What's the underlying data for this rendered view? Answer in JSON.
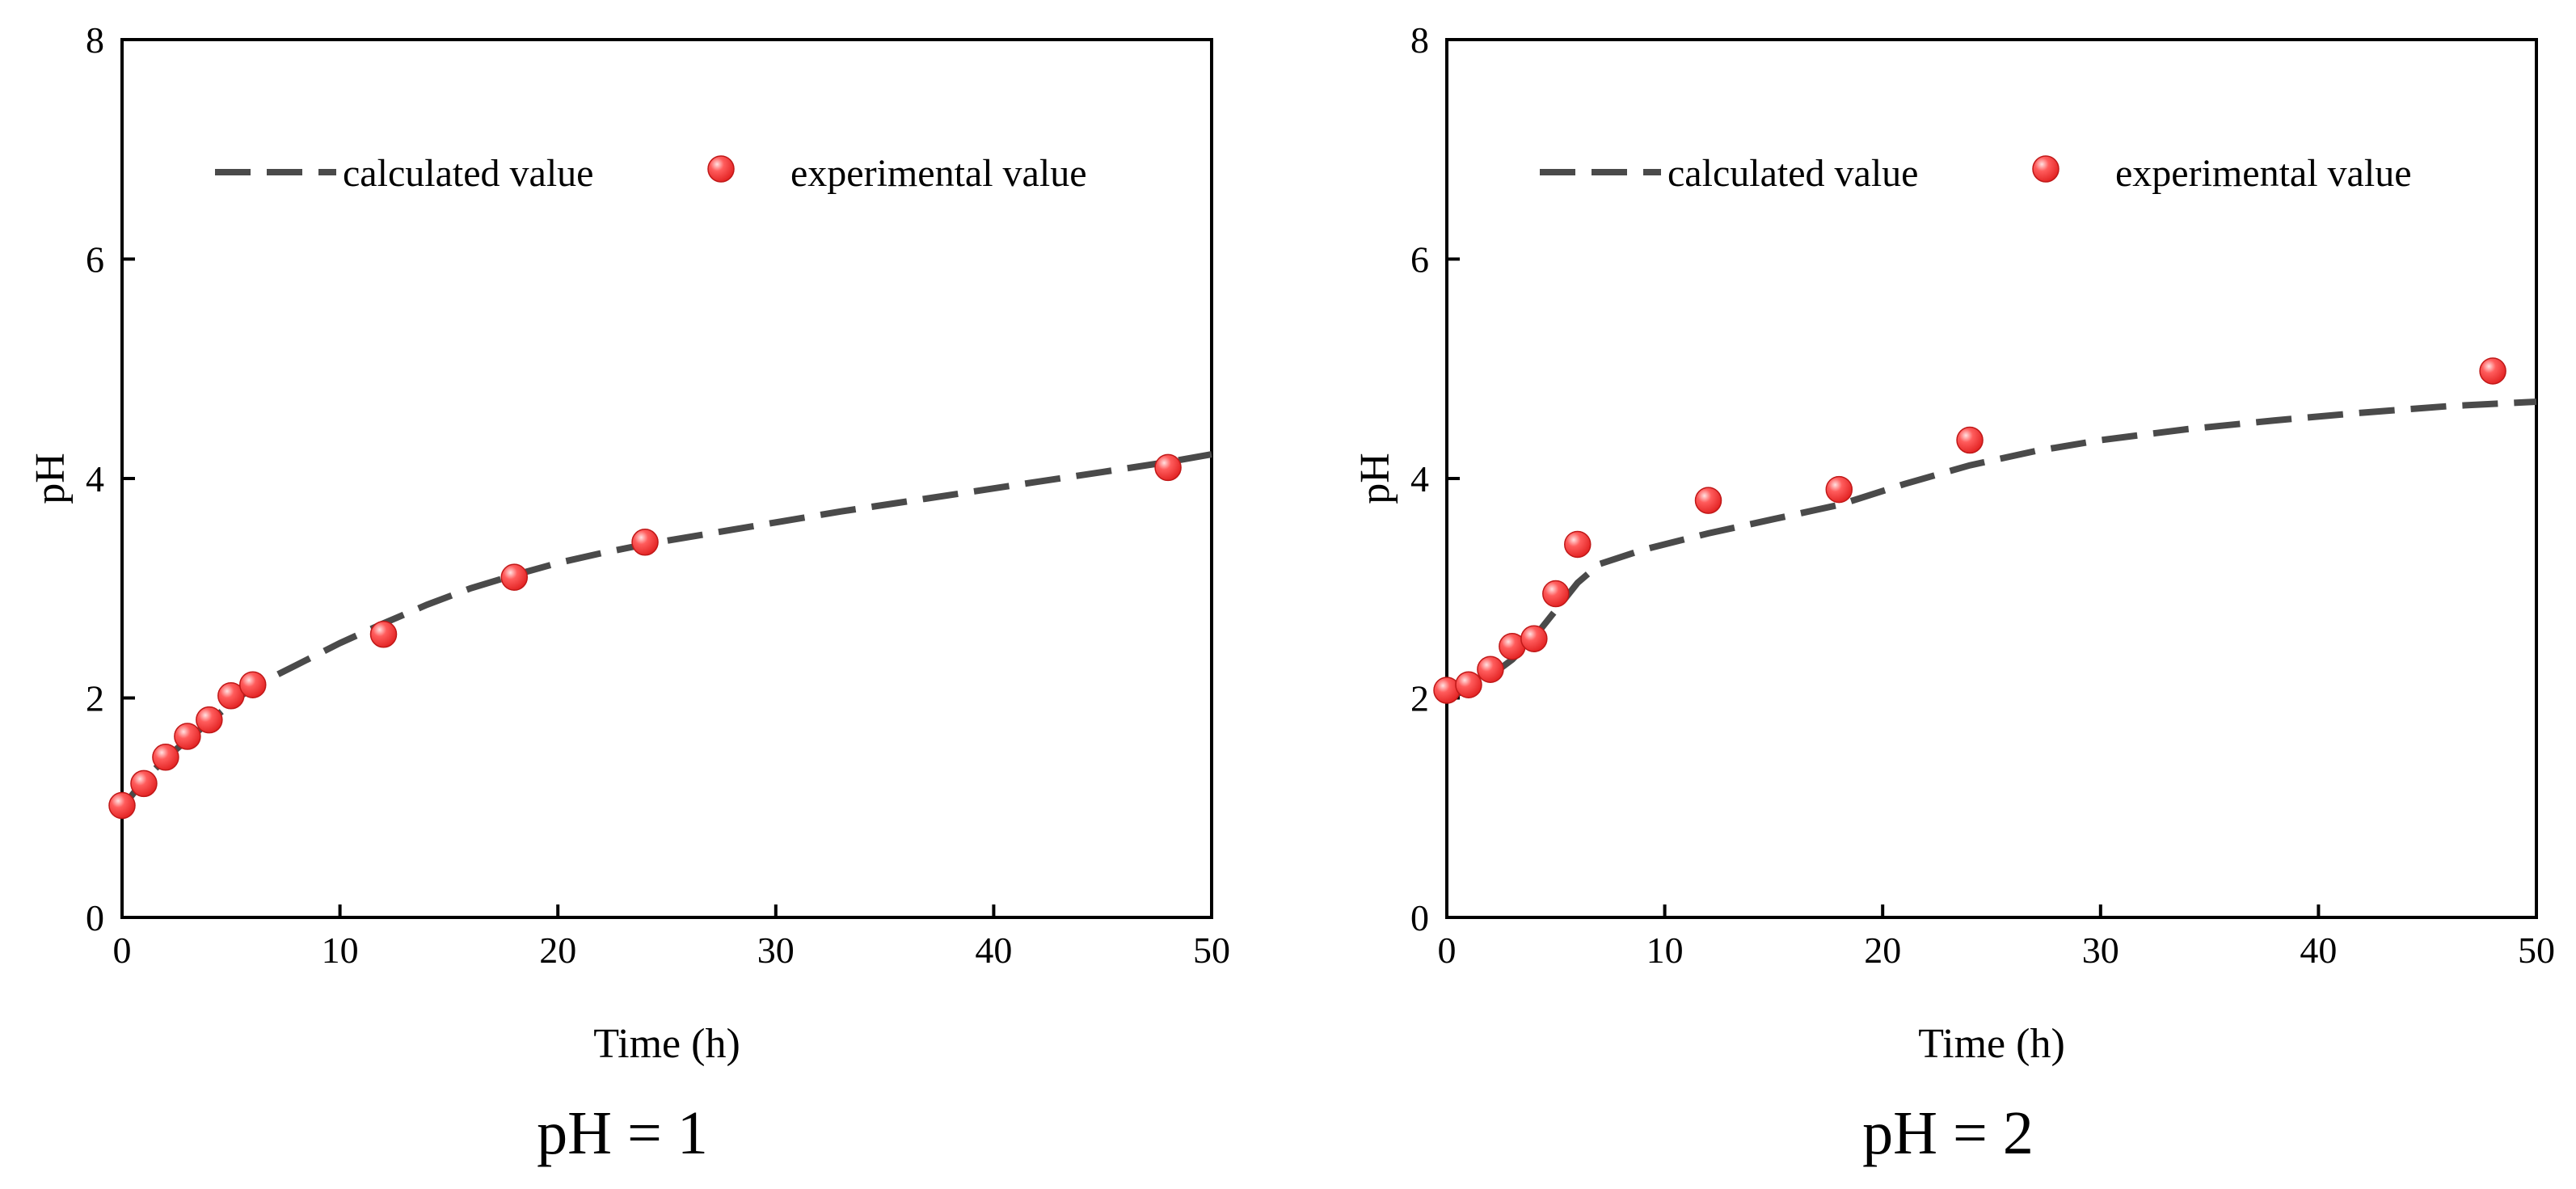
{
  "colors": {
    "curve": "#4a4a4a",
    "marker": "#ff3b3b",
    "marker_highlight": "#ffd6d6",
    "axis": "#000000"
  },
  "chart_data": [
    {
      "type": "scatter",
      "caption": "pH = 1",
      "xlabel": "Time (h)",
      "ylabel": "pH",
      "xlim": [
        0,
        50
      ],
      "ylim": [
        0,
        8
      ],
      "xticks": [
        0,
        10,
        20,
        30,
        40,
        50
      ],
      "yticks": [
        0,
        2,
        4,
        6,
        8
      ],
      "legend": {
        "position": "top",
        "entries": [
          "calculated value",
          "experimental value"
        ]
      },
      "series": [
        {
          "name": "calculated value",
          "style": "dashed-line",
          "x": [
            0,
            1,
            2,
            3,
            4,
            5,
            6,
            8,
            10,
            12,
            14,
            16,
            18,
            20,
            22,
            24,
            27,
            30,
            33,
            36,
            39,
            42,
            45,
            48,
            50
          ],
          "y": [
            1.0,
            1.25,
            1.45,
            1.62,
            1.78,
            1.95,
            2.1,
            2.3,
            2.5,
            2.68,
            2.85,
            3.0,
            3.12,
            3.23,
            3.32,
            3.4,
            3.5,
            3.6,
            3.7,
            3.79,
            3.88,
            3.97,
            4.06,
            4.15,
            4.22
          ]
        },
        {
          "name": "experimental value",
          "style": "markers",
          "x": [
            0,
            1,
            2,
            3,
            4,
            5,
            6,
            12,
            18,
            24,
            48
          ],
          "y": [
            1.02,
            1.22,
            1.46,
            1.65,
            1.8,
            2.02,
            2.12,
            2.58,
            3.1,
            3.42,
            4.1
          ]
        }
      ]
    },
    {
      "type": "scatter",
      "caption": "pH = 2",
      "xlabel": "Time (h)",
      "ylabel": "pH",
      "xlim": [
        0,
        50
      ],
      "ylim": [
        0,
        8
      ],
      "xticks": [
        0,
        10,
        20,
        30,
        40,
        50
      ],
      "yticks": [
        0,
        2,
        4,
        6,
        8
      ],
      "legend": {
        "position": "top",
        "entries": [
          "calculated value",
          "experimental value"
        ]
      },
      "series": [
        {
          "name": "calculated value",
          "style": "dashed-line",
          "x": [
            0,
            1,
            2,
            3,
            4,
            5,
            6,
            7,
            9,
            12,
            15,
            18,
            21,
            24,
            27,
            30,
            34,
            38,
            42,
            46,
            50
          ],
          "y": [
            2.0,
            2.08,
            2.2,
            2.35,
            2.55,
            2.8,
            3.05,
            3.22,
            3.35,
            3.5,
            3.63,
            3.76,
            3.95,
            4.12,
            4.25,
            4.35,
            4.45,
            4.53,
            4.6,
            4.66,
            4.7
          ]
        },
        {
          "name": "experimental value",
          "style": "markers",
          "x": [
            0,
            1,
            2,
            3,
            4,
            5,
            6,
            12,
            18,
            24,
            48
          ],
          "y": [
            2.07,
            2.12,
            2.26,
            2.47,
            2.54,
            2.95,
            3.4,
            3.8,
            3.9,
            4.35,
            4.98
          ]
        }
      ]
    }
  ]
}
